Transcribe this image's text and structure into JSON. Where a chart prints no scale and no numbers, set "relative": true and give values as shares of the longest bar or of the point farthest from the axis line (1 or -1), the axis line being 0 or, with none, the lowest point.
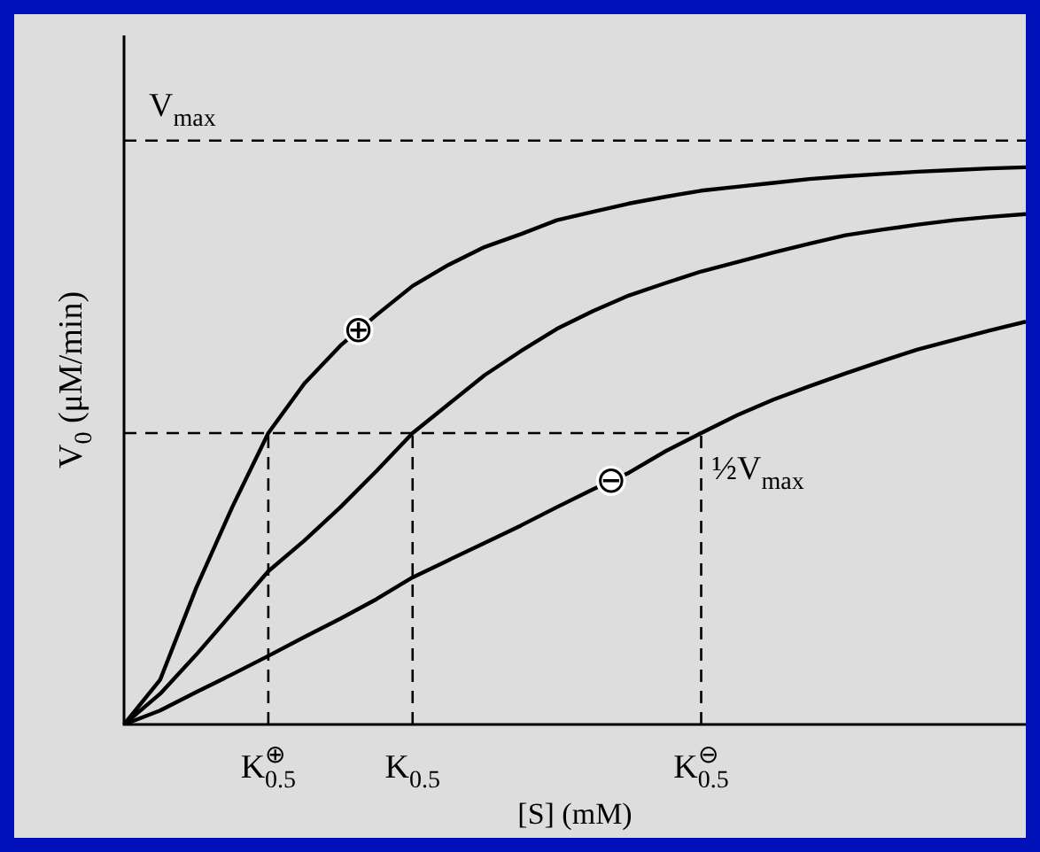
{
  "chart_data": {
    "type": "line",
    "relative": true,
    "xlabel": "[S] (mM)",
    "ylabel": "V$_{0}$ (μM/min)",
    "categories": [
      null,
      null,
      null,
      null,
      "K$_{0.5}$$^{⊕}$",
      null,
      null,
      null,
      "K$_{0.5}$",
      null,
      null,
      null,
      null,
      null,
      null,
      null,
      "K$_{0.5}$$^{⊖}$",
      null,
      null,
      null,
      null,
      null,
      null,
      null,
      null,
      null
    ],
    "series": [
      {
        "name": "⊕",
        "color": "#000000",
        "values": [
          0,
          0.08,
          0.245,
          0.39,
          0.523,
          0.612,
          0.68,
          0.735,
          0.787,
          0.825,
          0.857,
          0.88,
          0.905,
          0.92,
          0.935,
          0.947,
          0.958,
          0.965,
          0.972,
          0.979,
          0.984,
          0.988,
          0.992,
          0.995,
          0.998,
          1
        ]
      },
      {
        "color": "#000000",
        "values": [
          0,
          0.055,
          0.125,
          0.2,
          0.275,
          0.33,
          0.39,
          0.455,
          0.523,
          0.575,
          0.627,
          0.67,
          0.71,
          0.742,
          0.77,
          0.792,
          0.813,
          0.83,
          0.847,
          0.863,
          0.878,
          0.888,
          0.897,
          0.905,
          0.911,
          0.916
        ]
      },
      {
        "name": "⊖",
        "color": "#000000",
        "values": [
          0,
          0.025,
          0.058,
          0.09,
          0.123,
          0.157,
          0.19,
          0.225,
          0.264,
          0.295,
          0.326,
          0.357,
          0.39,
          0.422,
          0.452,
          0.49,
          0.523,
          0.555,
          0.583,
          0.607,
          0.63,
          0.652,
          0.673,
          0.69,
          0.707,
          0.723
        ]
      }
    ],
    "ref_lines": [
      {
        "axis": "y",
        "value": 1.048,
        "label": "V$_{max}$",
        "line_style": "dashed"
      },
      {
        "axis": "y",
        "value": 0.523,
        "label": "½V$_{max}$",
        "line_style": "dashed"
      },
      {
        "axis": "x",
        "value": "K$_{0.5}$$^{⊕}$",
        "line_style": "dashed"
      },
      {
        "axis": "x",
        "value": "K$_{0.5}$",
        "line_style": "dashed"
      },
      {
        "axis": "x",
        "value": "K$_{0.5}$$^{⊖}$",
        "line_style": "dashed"
      }
    ],
    "marker": "none",
    "line_style": "solid",
    "legend": false
  }
}
